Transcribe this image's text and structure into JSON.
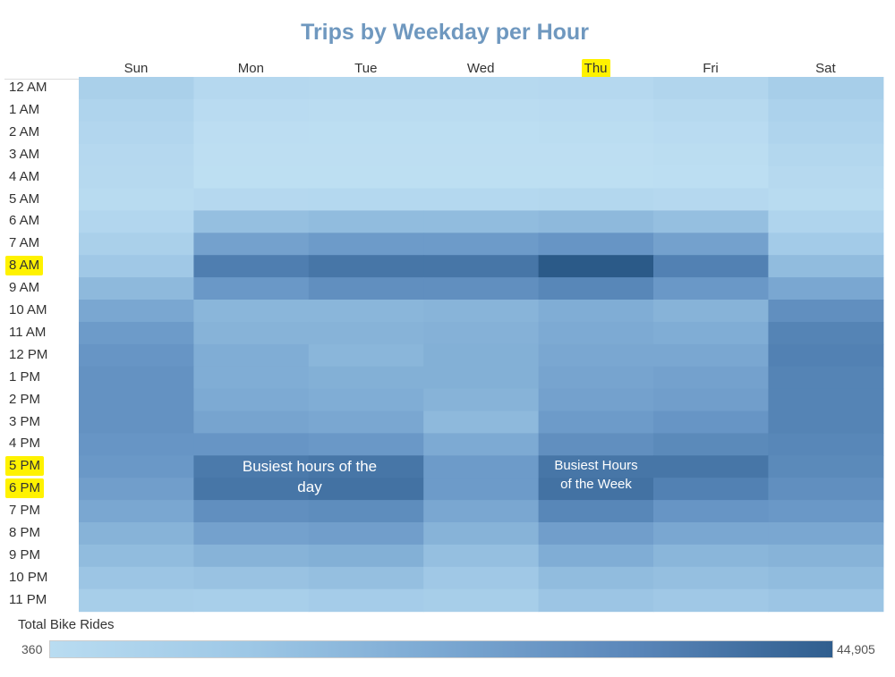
{
  "chart_data": {
    "type": "heatmap",
    "title": "Trips by Weekday per Hour",
    "columns": [
      "Sun",
      "Mon",
      "Tue",
      "Wed",
      "Thu",
      "Fri",
      "Sat"
    ],
    "rows": [
      "12 AM",
      "1 AM",
      "2 AM",
      "3 AM",
      "4 AM",
      "5 AM",
      "6 AM",
      "7 AM",
      "8 AM",
      "9 AM",
      "10 AM",
      "11 AM",
      "12 PM",
      "1 PM",
      "2 PM",
      "3 PM",
      "4 PM",
      "5 PM",
      "6 PM",
      "7 PM",
      "8 PM",
      "9 PM",
      "10 PM",
      "11 PM"
    ],
    "values": [
      [
        8000,
        4000,
        3500,
        3500,
        4000,
        5500,
        9000
      ],
      [
        6000,
        2500,
        2200,
        2200,
        2500,
        3500,
        7000
      ],
      [
        5000,
        1600,
        1400,
        1500,
        1700,
        2500,
        6000
      ],
      [
        4000,
        1200,
        1100,
        1100,
        1200,
        1800,
        4500
      ],
      [
        3500,
        1000,
        900,
        900,
        1000,
        1500,
        3500
      ],
      [
        2800,
        4000,
        4200,
        4200,
        4500,
        4000,
        2800
      ],
      [
        5000,
        14000,
        15000,
        15000,
        16000,
        14000,
        6000
      ],
      [
        8000,
        24000,
        26000,
        26000,
        28000,
        24000,
        10000
      ],
      [
        11000,
        36000,
        38000,
        38000,
        44905,
        35000,
        15000
      ],
      [
        16000,
        27000,
        30000,
        30000,
        33000,
        27000,
        22000
      ],
      [
        22000,
        17000,
        17000,
        17500,
        20000,
        18000,
        30000
      ],
      [
        26000,
        18000,
        18000,
        18500,
        21000,
        20000,
        34000
      ],
      [
        28000,
        20000,
        17000,
        19000,
        22000,
        22000,
        35000
      ],
      [
        29000,
        20000,
        19000,
        19000,
        23000,
        24000,
        34000
      ],
      [
        29000,
        21000,
        20000,
        18000,
        24000,
        25000,
        34000
      ],
      [
        29000,
        23000,
        22000,
        16000,
        26000,
        28000,
        34000
      ],
      [
        28000,
        28000,
        27000,
        21000,
        30000,
        32000,
        33000
      ],
      [
        27000,
        37000,
        38000,
        26000,
        38000,
        38000,
        32000
      ],
      [
        25000,
        38000,
        39000,
        26000,
        39000,
        35000,
        30000
      ],
      [
        22000,
        30000,
        31000,
        22000,
        33000,
        28000,
        27000
      ],
      [
        18000,
        24000,
        25000,
        18000,
        25000,
        22000,
        22000
      ],
      [
        15000,
        18000,
        19000,
        14000,
        20000,
        17000,
        18000
      ],
      [
        12000,
        13000,
        14000,
        11000,
        15000,
        14000,
        15000
      ],
      [
        9000,
        8500,
        9500,
        9000,
        12000,
        11000,
        12000
      ]
    ],
    "min": 360,
    "max": 44905,
    "color_range": [
      "#b9dcf1",
      "#2b5a88"
    ],
    "legend_title": "Total Bike Rides",
    "legend_min_label": "360",
    "legend_max_label": "44,905",
    "highlighted_labels": [
      "Thu",
      "8 AM",
      "5 PM",
      "6 PM"
    ],
    "annotations": [
      {
        "text": "Busiest hours of the day",
        "columns": [
          "Mon",
          "Tue"
        ],
        "rows": [
          "5 PM",
          "6 PM"
        ]
      },
      {
        "text": "Busiest Hours of the Week",
        "columns": [
          "Thu"
        ],
        "rows": [
          "5 PM",
          "6 PM"
        ]
      }
    ]
  },
  "annotations_text": {
    "day_line1": "Busiest hours of the",
    "day_line2": "day",
    "week_line1": "Busiest Hours",
    "week_line2": "of the Week"
  }
}
